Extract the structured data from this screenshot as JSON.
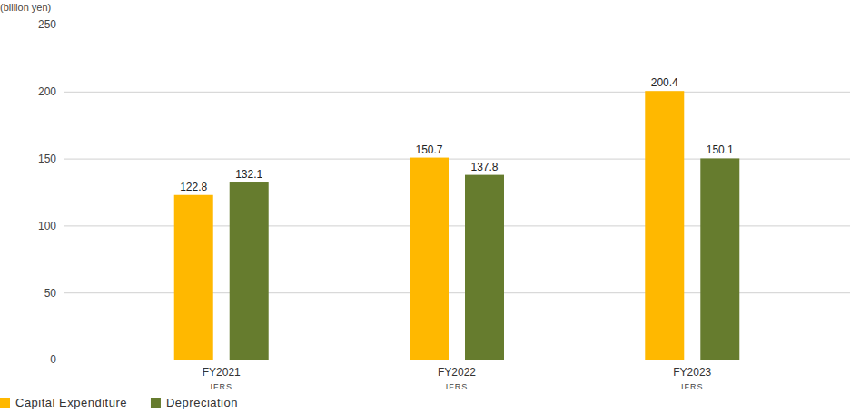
{
  "chart_data": {
    "type": "bar",
    "y_label": "(billion yen)",
    "categories": [
      "FY2021",
      "FY2022",
      "FY2023"
    ],
    "category_notes": [
      "IFRS",
      "IFRS",
      "IFRS"
    ],
    "series": [
      {
        "name": "Capital Expenditure",
        "color": "#ffb800",
        "values": [
          122.8,
          150.7,
          200.4
        ]
      },
      {
        "name": "Depreciation",
        "color": "#667c2e",
        "values": [
          132.1,
          137.8,
          150.1
        ]
      }
    ],
    "ylim": [
      0,
      250
    ],
    "yticks": [
      0,
      50,
      100,
      150,
      200,
      250
    ],
    "grid": true,
    "data_labels": true,
    "legend": "bottom-left"
  }
}
